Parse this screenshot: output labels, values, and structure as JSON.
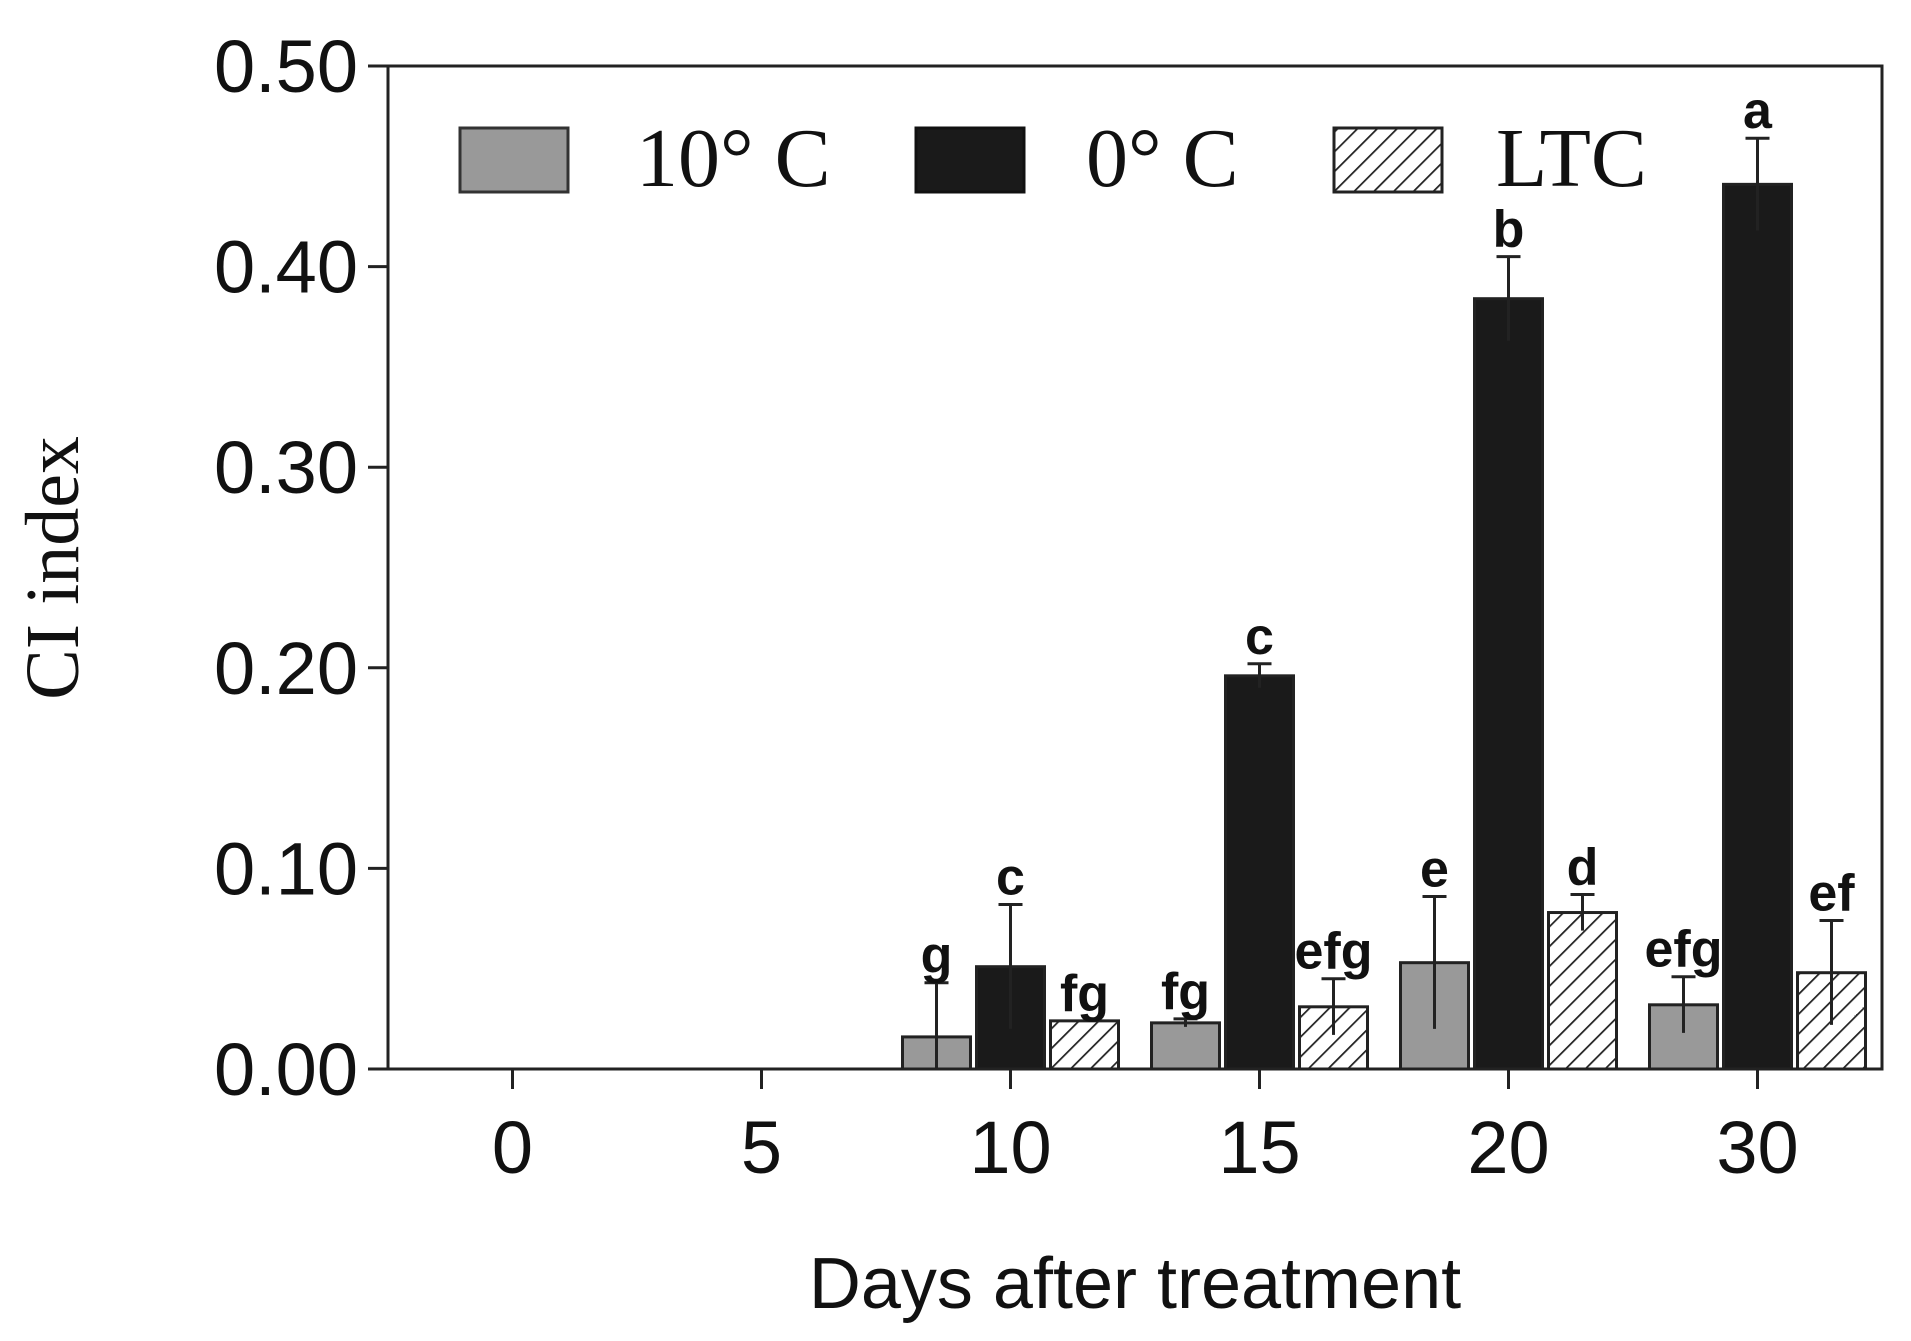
{
  "chart_data": {
    "type": "bar",
    "title": "",
    "xlabel": "Days after treatment",
    "ylabel": "CI index",
    "ylim": [
      0,
      0.5
    ],
    "yticks": [
      "0.00",
      "0.10",
      "0.20",
      "0.30",
      "0.40",
      "0.50"
    ],
    "categories": [
      "0",
      "5",
      "10",
      "15",
      "20",
      "30"
    ],
    "legend_position": "top",
    "series": [
      {
        "name": "10° C",
        "fill": "#999999",
        "values": [
          0,
          0,
          0.016,
          0.023,
          0.053,
          0.032
        ],
        "errors": [
          0,
          0,
          0.027,
          0.002,
          0.033,
          0.014
        ],
        "letters": [
          "",
          "",
          "g",
          "fg",
          "e",
          "efg"
        ]
      },
      {
        "name": "0° C",
        "fill": "#1a1a1a",
        "values": [
          0,
          0,
          0.051,
          0.196,
          0.384,
          0.441
        ],
        "errors": [
          0,
          0,
          0.031,
          0.006,
          0.021,
          0.023
        ],
        "letters": [
          "",
          "",
          "c",
          "c",
          "b",
          "a"
        ]
      },
      {
        "name": "LTC",
        "fill": "hatch",
        "values": [
          0,
          0,
          0.024,
          0.031,
          0.078,
          0.048
        ],
        "errors": [
          0,
          0,
          0,
          0.014,
          0.009,
          0.026
        ],
        "letters": [
          "",
          "",
          "fg",
          "efg",
          "d",
          "ef"
        ]
      }
    ]
  }
}
